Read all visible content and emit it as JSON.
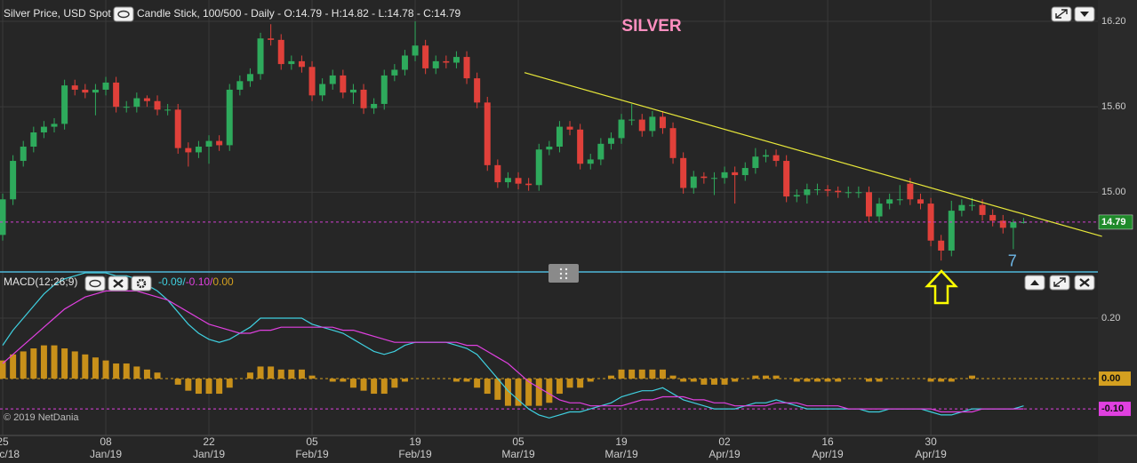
{
  "header": {
    "instrument": "Silver Price, USD Spot",
    "info": "Candle Stick, 100/500 - Daily - O:14.79 - H:14.82 - L:14.78 - C:14.79"
  },
  "copyright": "© 2019 NetDania",
  "chart_data": [
    {
      "type": "candlestick",
      "title": "SILVER",
      "up_color": "#2eaa5c",
      "down_color": "#e0403a",
      "ylim": [
        14.44,
        16.35
      ],
      "xlim": [
        -0.26,
        106.2
      ],
      "yticks": [
        {
          "value": 16.2,
          "label": "16.20"
        },
        {
          "value": 15.6,
          "label": "15.60"
        },
        {
          "value": 15.0,
          "label": "15.00"
        }
      ],
      "xticks": [
        {
          "value": 0,
          "label": "25",
          "month": "Dec/18"
        },
        {
          "value": 10,
          "label": "08",
          "month": "Jan/19"
        },
        {
          "value": 20,
          "label": "22",
          "month": "Jan/19"
        },
        {
          "value": 30,
          "label": "05",
          "month": "Feb/19"
        },
        {
          "value": 40,
          "label": "19",
          "month": "Feb/19"
        },
        {
          "value": 50,
          "label": "05",
          "month": "Mar/19"
        },
        {
          "value": 60,
          "label": "19",
          "month": "Mar/19"
        },
        {
          "value": 70,
          "label": "02",
          "month": "Apr/19"
        },
        {
          "value": 80,
          "label": "16",
          "month": "Apr/19"
        },
        {
          "value": 90,
          "label": "30",
          "month": "Apr/19"
        }
      ],
      "last_price": {
        "value": 14.79,
        "label": "14.79",
        "color": "#1f8a2a"
      },
      "trendline": {
        "x": [
          50.6,
          106.6
        ],
        "y": [
          15.84,
          14.69
        ],
        "color": "#e8e83a"
      },
      "annotations": [
        {
          "text": "7",
          "x": 97.9,
          "y": 14.51,
          "color": "#6fb8e8"
        }
      ],
      "ohlc": [
        [
          14.7,
          14.99,
          14.66,
          14.95
        ],
        [
          14.95,
          15.26,
          14.91,
          15.22
        ],
        [
          15.22,
          15.36,
          15.18,
          15.32
        ],
        [
          15.32,
          15.46,
          15.28,
          15.42
        ],
        [
          15.42,
          15.5,
          15.38,
          15.46
        ],
        [
          15.46,
          15.52,
          15.42,
          15.48
        ],
        [
          15.48,
          15.79,
          15.44,
          15.75
        ],
        [
          15.75,
          15.79,
          15.68,
          15.72
        ],
        [
          15.72,
          15.76,
          15.66,
          15.7
        ],
        [
          15.7,
          15.76,
          15.54,
          15.72
        ],
        [
          15.72,
          15.81,
          15.68,
          15.77
        ],
        [
          15.77,
          15.81,
          15.56,
          15.6
        ],
        [
          15.6,
          15.64,
          15.56,
          15.6
        ],
        [
          15.6,
          15.7,
          15.56,
          15.66
        ],
        [
          15.66,
          15.68,
          15.6,
          15.64
        ],
        [
          15.64,
          15.68,
          15.54,
          15.58
        ],
        [
          15.58,
          15.62,
          15.54,
          15.58
        ],
        [
          15.58,
          15.62,
          15.27,
          15.31
        ],
        [
          15.31,
          15.35,
          15.18,
          15.28
        ],
        [
          15.28,
          15.36,
          15.24,
          15.32
        ],
        [
          15.32,
          15.4,
          15.2,
          15.36
        ],
        [
          15.36,
          15.4,
          15.29,
          15.33
        ],
        [
          15.33,
          15.76,
          15.29,
          15.72
        ],
        [
          15.72,
          15.82,
          15.68,
          15.78
        ],
        [
          15.78,
          15.87,
          15.74,
          15.83
        ],
        [
          15.83,
          16.12,
          15.79,
          16.08
        ],
        [
          16.08,
          16.18,
          16.03,
          16.07
        ],
        [
          16.07,
          16.11,
          15.86,
          15.9
        ],
        [
          15.9,
          15.96,
          15.86,
          15.92
        ],
        [
          15.92,
          15.96,
          15.84,
          15.88
        ],
        [
          15.88,
          15.92,
          15.64,
          15.68
        ],
        [
          15.68,
          15.8,
          15.64,
          15.76
        ],
        [
          15.76,
          15.86,
          15.72,
          15.82
        ],
        [
          15.82,
          15.86,
          15.66,
          15.7
        ],
        [
          15.7,
          15.76,
          15.62,
          15.72
        ],
        [
          15.72,
          15.76,
          15.55,
          15.59
        ],
        [
          15.59,
          15.66,
          15.55,
          15.62
        ],
        [
          15.62,
          15.86,
          15.58,
          15.82
        ],
        [
          15.82,
          15.9,
          15.78,
          15.86
        ],
        [
          15.86,
          16.0,
          15.82,
          15.96
        ],
        [
          15.96,
          16.2,
          15.92,
          16.03
        ],
        [
          16.03,
          16.07,
          15.83,
          15.87
        ],
        [
          15.87,
          15.96,
          15.83,
          15.92
        ],
        [
          15.92,
          15.96,
          15.87,
          15.91
        ],
        [
          15.91,
          15.99,
          15.87,
          15.95
        ],
        [
          15.95,
          15.99,
          15.76,
          15.8
        ],
        [
          15.8,
          15.84,
          15.59,
          15.63
        ],
        [
          15.63,
          15.67,
          15.15,
          15.19
        ],
        [
          15.19,
          15.23,
          15.03,
          15.07
        ],
        [
          15.07,
          15.14,
          15.03,
          15.1
        ],
        [
          15.1,
          15.14,
          15.02,
          15.06
        ],
        [
          15.06,
          15.1,
          15.01,
          15.05
        ],
        [
          15.05,
          15.34,
          15.01,
          15.3
        ],
        [
          15.3,
          15.36,
          15.26,
          15.32
        ],
        [
          15.32,
          15.5,
          15.28,
          15.46
        ],
        [
          15.46,
          15.5,
          15.4,
          15.44
        ],
        [
          15.44,
          15.48,
          15.16,
          15.2
        ],
        [
          15.2,
          15.27,
          15.16,
          15.23
        ],
        [
          15.23,
          15.38,
          15.19,
          15.34
        ],
        [
          15.34,
          15.42,
          15.3,
          15.38
        ],
        [
          15.38,
          15.55,
          15.34,
          15.51
        ],
        [
          15.51,
          15.62,
          15.47,
          15.51
        ],
        [
          15.51,
          15.55,
          15.39,
          15.43
        ],
        [
          15.43,
          15.57,
          15.39,
          15.53
        ],
        [
          15.53,
          15.57,
          15.41,
          15.45
        ],
        [
          15.45,
          15.49,
          15.2,
          15.24
        ],
        [
          15.24,
          15.28,
          14.99,
          15.03
        ],
        [
          15.03,
          15.15,
          14.99,
          15.11
        ],
        [
          15.11,
          15.14,
          15.06,
          15.1
        ],
        [
          15.1,
          15.14,
          14.98,
          15.1
        ],
        [
          15.1,
          15.18,
          15.06,
          15.14
        ],
        [
          15.14,
          15.18,
          14.92,
          15.12
        ],
        [
          15.12,
          15.21,
          15.08,
          15.17
        ],
        [
          15.17,
          15.31,
          15.13,
          15.25
        ],
        [
          15.25,
          15.3,
          15.21,
          15.26
        ],
        [
          15.26,
          15.3,
          15.18,
          15.22
        ],
        [
          15.22,
          15.26,
          14.93,
          14.97
        ],
        [
          14.97,
          15.02,
          14.93,
          14.98
        ],
        [
          14.98,
          15.06,
          14.92,
          15.02
        ],
        [
          15.02,
          15.06,
          14.98,
          15.02
        ],
        [
          15.02,
          15.05,
          14.97,
          15.01
        ],
        [
          15.01,
          15.04,
          14.96,
          15.0
        ],
        [
          15.0,
          15.04,
          14.96,
          15.0
        ],
        [
          15.0,
          15.04,
          14.96,
          15.0
        ],
        [
          15.0,
          15.04,
          14.79,
          14.83
        ],
        [
          14.83,
          14.96,
          14.79,
          14.92
        ],
        [
          14.92,
          14.99,
          14.88,
          14.95
        ],
        [
          14.95,
          15.05,
          14.91,
          14.95
        ],
        [
          15.06,
          15.1,
          14.91,
          14.95
        ],
        [
          14.95,
          14.99,
          14.88,
          14.92
        ],
        [
          14.92,
          14.96,
          14.62,
          14.66
        ],
        [
          14.66,
          14.7,
          14.52,
          14.59
        ],
        [
          14.59,
          14.94,
          14.55,
          14.87
        ],
        [
          14.87,
          14.95,
          14.83,
          14.91
        ],
        [
          14.91,
          14.96,
          14.87,
          14.91
        ],
        [
          14.91,
          14.95,
          14.8,
          14.84
        ],
        [
          14.84,
          14.88,
          14.76,
          14.8
        ],
        [
          14.8,
          14.84,
          14.71,
          14.75
        ],
        [
          14.75,
          14.81,
          14.6,
          14.79
        ],
        [
          14.79,
          14.82,
          14.78,
          14.79
        ]
      ]
    },
    {
      "type": "macd",
      "title": "MACD(12;26;9)",
      "ylim": [
        -0.188,
        0.347
      ],
      "xlim": [
        -0.26,
        106.2
      ],
      "yticks": [
        {
          "value": 0.2,
          "label": "0.20"
        }
      ],
      "header_values": [
        {
          "text": "-0.09/",
          "color": "#3fd0e0"
        },
        {
          "text": "-0.10/",
          "color": "#e040e0"
        },
        {
          "text": "0.00",
          "color": "#d4a020"
        }
      ],
      "levels": [
        {
          "value": 0,
          "label": "0.00",
          "color": "#d4a020"
        },
        {
          "value": -0.1,
          "label": "-0.10",
          "color": "#e040e0"
        }
      ],
      "series": [
        {
          "style": "bar",
          "color": "#c8901a",
          "values": [
            0.06,
            0.08,
            0.09,
            0.1,
            0.11,
            0.11,
            0.1,
            0.09,
            0.08,
            0.07,
            0.06,
            0.05,
            0.05,
            0.04,
            0.03,
            0.02,
            0.0,
            -0.02,
            -0.04,
            -0.05,
            -0.05,
            -0.05,
            -0.03,
            0.0,
            0.02,
            0.04,
            0.04,
            0.03,
            0.03,
            0.03,
            0.01,
            0.0,
            -0.01,
            -0.01,
            -0.03,
            -0.04,
            -0.05,
            -0.05,
            -0.03,
            -0.01,
            0.0,
            0.0,
            0.0,
            0.0,
            -0.01,
            -0.01,
            -0.03,
            -0.05,
            -0.07,
            -0.09,
            -0.09,
            -0.09,
            -0.09,
            -0.08,
            -0.05,
            -0.03,
            -0.03,
            -0.01,
            0.0,
            0.01,
            0.03,
            0.03,
            0.03,
            0.03,
            0.03,
            0.01,
            -0.01,
            -0.01,
            -0.02,
            -0.02,
            -0.02,
            -0.01,
            0.0,
            0.01,
            0.01,
            0.01,
            0.0,
            -0.01,
            -0.01,
            -0.01,
            -0.01,
            -0.01,
            0.0,
            0.0,
            -0.01,
            -0.01,
            0.0,
            0.0,
            0.0,
            0.0,
            -0.01,
            -0.01,
            -0.01,
            0.0,
            0.01,
            0.0,
            0.0,
            0.0,
            0.0,
            0.0
          ]
        },
        {
          "style": "line",
          "color": "#3fd0e0",
          "values": [
            0.11,
            0.16,
            0.2,
            0.24,
            0.28,
            0.31,
            0.33,
            0.34,
            0.35,
            0.35,
            0.35,
            0.34,
            0.34,
            0.33,
            0.31,
            0.29,
            0.26,
            0.22,
            0.18,
            0.15,
            0.13,
            0.12,
            0.13,
            0.15,
            0.17,
            0.2,
            0.2,
            0.2,
            0.2,
            0.2,
            0.18,
            0.17,
            0.16,
            0.15,
            0.13,
            0.11,
            0.09,
            0.08,
            0.09,
            0.11,
            0.12,
            0.12,
            0.12,
            0.12,
            0.11,
            0.1,
            0.08,
            0.04,
            0.0,
            -0.04,
            -0.07,
            -0.1,
            -0.12,
            -0.13,
            -0.12,
            -0.11,
            -0.11,
            -0.1,
            -0.09,
            -0.08,
            -0.06,
            -0.05,
            -0.04,
            -0.04,
            -0.03,
            -0.05,
            -0.07,
            -0.08,
            -0.09,
            -0.1,
            -0.1,
            -0.1,
            -0.09,
            -0.08,
            -0.08,
            -0.07,
            -0.08,
            -0.09,
            -0.1,
            -0.1,
            -0.1,
            -0.1,
            -0.1,
            -0.1,
            -0.11,
            -0.11,
            -0.1,
            -0.1,
            -0.1,
            -0.1,
            -0.11,
            -0.12,
            -0.12,
            -0.11,
            -0.1,
            -0.1,
            -0.1,
            -0.1,
            -0.1,
            -0.09
          ]
        },
        {
          "style": "line",
          "color": "#e040e0",
          "values": [
            0.05,
            0.08,
            0.11,
            0.14,
            0.17,
            0.2,
            0.23,
            0.25,
            0.27,
            0.28,
            0.29,
            0.29,
            0.29,
            0.29,
            0.28,
            0.27,
            0.26,
            0.24,
            0.22,
            0.2,
            0.18,
            0.17,
            0.16,
            0.15,
            0.15,
            0.16,
            0.16,
            0.17,
            0.17,
            0.17,
            0.17,
            0.17,
            0.17,
            0.16,
            0.16,
            0.15,
            0.14,
            0.13,
            0.12,
            0.12,
            0.12,
            0.12,
            0.12,
            0.12,
            0.12,
            0.11,
            0.11,
            0.09,
            0.07,
            0.05,
            0.02,
            -0.01,
            -0.03,
            -0.05,
            -0.07,
            -0.08,
            -0.08,
            -0.09,
            -0.09,
            -0.09,
            -0.09,
            -0.08,
            -0.07,
            -0.07,
            -0.06,
            -0.06,
            -0.06,
            -0.07,
            -0.07,
            -0.08,
            -0.08,
            -0.09,
            -0.09,
            -0.09,
            -0.09,
            -0.08,
            -0.08,
            -0.08,
            -0.09,
            -0.09,
            -0.09,
            -0.09,
            -0.1,
            -0.1,
            -0.1,
            -0.1,
            -0.1,
            -0.1,
            -0.1,
            -0.1,
            -0.1,
            -0.11,
            -0.11,
            -0.11,
            -0.11,
            -0.1,
            -0.1,
            -0.1,
            -0.1,
            -0.1
          ]
        }
      ]
    }
  ]
}
